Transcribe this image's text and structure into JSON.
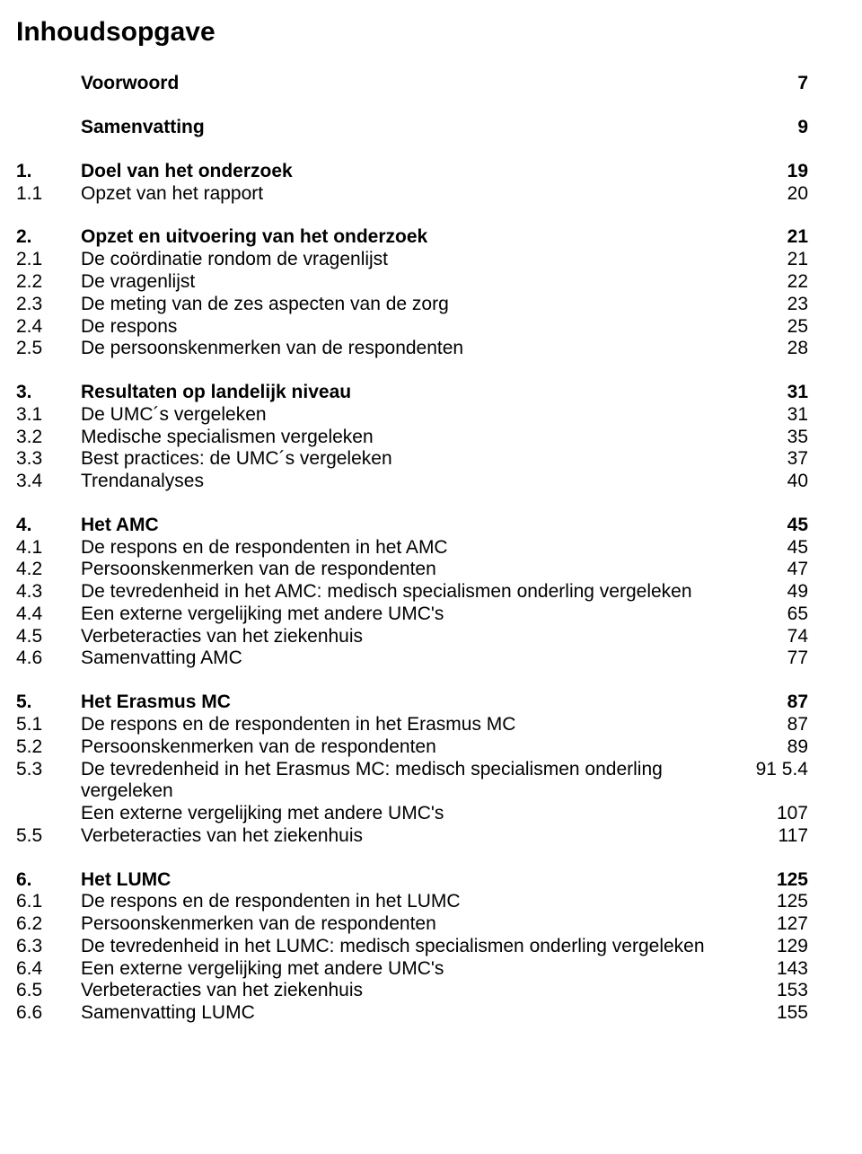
{
  "title": "Inhoudsopgave",
  "sections": [
    {
      "rows": [
        {
          "num": "",
          "text": "Voorwoord",
          "page": "7",
          "bold": true
        }
      ]
    },
    {
      "rows": [
        {
          "num": "",
          "text": "Samenvatting",
          "page": "9",
          "bold": true
        }
      ]
    },
    {
      "rows": [
        {
          "num": "1.",
          "text": "Doel van het onderzoek",
          "page": "19",
          "bold": true
        },
        {
          "num": "1.1",
          "text": "Opzet van het rapport",
          "page": "20",
          "bold": false
        }
      ]
    },
    {
      "rows": [
        {
          "num": "2.",
          "text": "Opzet en uitvoering van het onderzoek",
          "page": "21",
          "bold": true
        },
        {
          "num": "2.1",
          "text": "De coördinatie rondom de vragenlijst",
          "page": "21",
          "bold": false
        },
        {
          "num": "2.2",
          "text": "De vragenlijst",
          "page": "22",
          "bold": false
        },
        {
          "num": "2.3",
          "text": "De meting van de zes aspecten van de zorg",
          "page": "23",
          "bold": false
        },
        {
          "num": "2.4",
          "text": "De respons",
          "page": "25",
          "bold": false
        },
        {
          "num": "2.5",
          "text": "De persoonskenmerken van de respondenten",
          "page": "28",
          "bold": false
        }
      ]
    },
    {
      "rows": [
        {
          "num": "3.",
          "text": "Resultaten op landelijk niveau",
          "page": "31",
          "bold": true
        },
        {
          "num": "3.1",
          "text": "De UMC´s vergeleken",
          "page": "31",
          "bold": false
        },
        {
          "num": "3.2",
          "text": "Medische specialismen vergeleken",
          "page": "35",
          "bold": false
        },
        {
          "num": "3.3",
          "text": "Best practices: de UMC´s vergeleken",
          "page": "37",
          "bold": false
        },
        {
          "num": "3.4",
          "text": "Trendanalyses",
          "page": "40",
          "bold": false
        }
      ]
    },
    {
      "rows": [
        {
          "num": "4.",
          "text": "Het AMC",
          "page": "45",
          "bold": true
        },
        {
          "num": "4.1",
          "text": "De respons en de respondenten in het AMC",
          "page": "45",
          "bold": false
        },
        {
          "num": "4.2",
          "text": "Persoonskenmerken van de respondenten",
          "page": "47",
          "bold": false
        },
        {
          "num": "4.3",
          "text": "De tevredenheid in het AMC: medisch specialismen onderling vergeleken",
          "page": "49",
          "bold": false
        },
        {
          "num": "4.4",
          "text": "Een externe vergelijking met andere UMC's",
          "page": "65",
          "bold": false
        },
        {
          "num": "4.5",
          "text": "Verbeteracties van het ziekenhuis",
          "page": "74",
          "bold": false
        },
        {
          "num": "4.6",
          "text": "Samenvatting AMC",
          "page": "77",
          "bold": false
        }
      ]
    },
    {
      "rows": [
        {
          "num": "5.",
          "text": "Het Erasmus MC",
          "page": "87",
          "bold": true
        },
        {
          "num": "5.1",
          "text": "De respons en de respondenten in het Erasmus MC",
          "page": "87",
          "bold": false
        },
        {
          "num": "5.2",
          "text": "Persoonskenmerken van de respondenten",
          "page": "89",
          "bold": false
        },
        {
          "num": "5.3",
          "text": "De tevredenheid in het Erasmus MC: medisch specialismen onderling vergeleken",
          "page": "91",
          "bold": false,
          "inline_next_num": "5.4"
        },
        {
          "num": "",
          "text": "Een externe vergelijking met andere UMC's",
          "page": "107",
          "bold": false
        },
        {
          "num": "5.5",
          "text": "Verbeteracties van het ziekenhuis",
          "page": "117",
          "bold": false
        }
      ]
    },
    {
      "rows": [
        {
          "num": "6.",
          "text": "Het LUMC",
          "page": "125",
          "bold": true
        },
        {
          "num": "6.1",
          "text": "De respons en de respondenten in het LUMC",
          "page": "125",
          "bold": false
        },
        {
          "num": "6.2",
          "text": "Persoonskenmerken van de respondenten",
          "page": "127",
          "bold": false
        },
        {
          "num": "6.3",
          "text": "De tevredenheid in het LUMC: medisch specialismen onderling vergeleken",
          "page": "129",
          "bold": false
        },
        {
          "num": "6.4",
          "text": "Een externe vergelijking met andere UMC's",
          "page": "143",
          "bold": false
        },
        {
          "num": "6.5",
          "text": "Verbeteracties van het ziekenhuis",
          "page": "153",
          "bold": false
        },
        {
          "num": "6.6",
          "text": "Samenvatting LUMC",
          "page": "155",
          "bold": false
        }
      ]
    }
  ]
}
